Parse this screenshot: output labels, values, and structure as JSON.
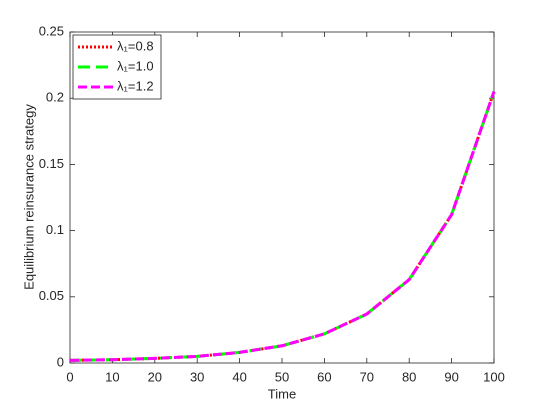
{
  "chart_data": {
    "type": "line",
    "xlabel": "Time",
    "ylabel": "Equilibrium reinsurance strategy",
    "x": [
      0,
      10,
      20,
      30,
      40,
      50,
      60,
      70,
      80,
      90,
      100
    ],
    "series": [
      {
        "name": "λ₁=0.8",
        "color": "#ff0000",
        "dash": "2,2",
        "values": [
          0.002,
          0.0025,
          0.0035,
          0.005,
          0.008,
          0.013,
          0.022,
          0.037,
          0.063,
          0.112,
          0.205
        ]
      },
      {
        "name": "λ₁=1.0",
        "color": "#00ff00",
        "dash": "12,6",
        "values": [
          0.002,
          0.0025,
          0.0035,
          0.005,
          0.008,
          0.013,
          0.022,
          0.037,
          0.063,
          0.112,
          0.205
        ]
      },
      {
        "name": "λ₁=1.2",
        "color": "#ff00ff",
        "dash": "9,4",
        "values": [
          0.002,
          0.0025,
          0.0035,
          0.005,
          0.008,
          0.013,
          0.022,
          0.037,
          0.063,
          0.112,
          0.205
        ]
      }
    ],
    "xlim": [
      0,
      100
    ],
    "xticks": [
      0,
      10,
      20,
      30,
      40,
      50,
      60,
      70,
      80,
      90,
      100
    ],
    "ylim": [
      0,
      0.25
    ],
    "yticks": [
      0,
      0.05,
      0.1,
      0.15,
      0.2,
      0.25
    ],
    "legend": "upper-left",
    "grid": false
  }
}
